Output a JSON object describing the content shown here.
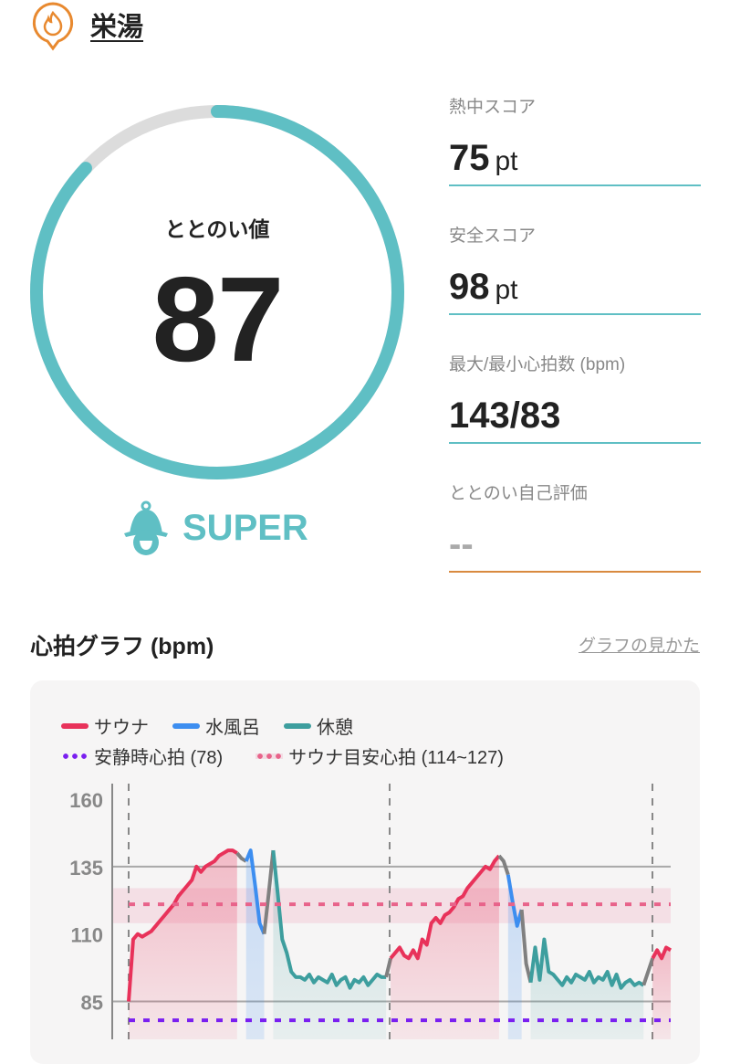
{
  "header": {
    "title": "栄湯",
    "icon": "flame-pin-icon"
  },
  "ring": {
    "label": "ととのい値",
    "value": "87",
    "progress_percent": 87,
    "color": "#5fbfc4",
    "track_color": "#dcdcdc"
  },
  "rank": {
    "label": "SUPER",
    "icon": "sauna-hat-icon"
  },
  "stats": [
    {
      "label": "熱中スコア",
      "value": "75",
      "unit": "pt"
    },
    {
      "label": "安全スコア",
      "value": "98",
      "unit": "pt"
    },
    {
      "label": "最大/最小心拍数 (bpm)",
      "value": "143/83",
      "unit": ""
    },
    {
      "label": "ととのい自己評価",
      "value": "--",
      "unit": ""
    }
  ],
  "graph": {
    "title": "心拍グラフ (bpm)",
    "howto_link": "グラフの見かた"
  },
  "legend": {
    "sauna": "サウナ",
    "cold_bath": "水風呂",
    "rest": "休憩",
    "resting": "安静時心拍 (78)",
    "target": "サウナ目安心拍 (114~127)"
  },
  "colors": {
    "sauna": "#e8325a",
    "cold_bath": "#3d8ef0",
    "rest": "#3d9e9e",
    "transition": "#808080",
    "resting": "#7a1ff0",
    "target": "#e8638a"
  },
  "chart_data": {
    "type": "line",
    "ylabel": "bpm",
    "yticks": [
      160,
      135,
      110,
      85
    ],
    "ylim": [
      70,
      164
    ],
    "resting_hr": 78,
    "target_band": [
      114,
      127
    ],
    "target_line": 121,
    "segments": [
      {
        "phase": "sauna",
        "values": [
          85,
          108,
          110,
          109,
          110,
          111,
          113,
          115,
          117,
          119,
          121,
          124,
          126,
          128,
          130,
          135,
          133,
          135,
          136,
          137,
          139,
          140,
          141,
          141,
          140
        ]
      },
      {
        "phase": "transition",
        "values": [
          138,
          137
        ]
      },
      {
        "phase": "cold_bath",
        "values": [
          141,
          128,
          114,
          110
        ]
      },
      {
        "phase": "transition",
        "values": [
          125,
          141
        ]
      },
      {
        "phase": "rest",
        "values": [
          125,
          108,
          103,
          96,
          94,
          94,
          93,
          95,
          92,
          94,
          93,
          92,
          95,
          91,
          93,
          94,
          90,
          93,
          92,
          94,
          91,
          93,
          95,
          94,
          94
        ]
      },
      {
        "phase": "transition",
        "values": [
          101
        ]
      },
      {
        "phase": "sauna",
        "values": [
          103,
          105,
          102,
          101,
          104,
          101,
          108,
          106,
          114,
          116,
          114,
          117,
          118,
          120,
          123,
          124,
          127,
          129,
          131,
          133,
          135,
          134,
          137,
          139
        ]
      },
      {
        "phase": "transition",
        "values": [
          137,
          132
        ]
      },
      {
        "phase": "cold_bath",
        "values": [
          122,
          113,
          119
        ]
      },
      {
        "phase": "transition",
        "values": [
          99,
          92
        ]
      },
      {
        "phase": "rest",
        "values": [
          105,
          93,
          108,
          96,
          95,
          93,
          91,
          94,
          92,
          95,
          94,
          93,
          96,
          92,
          94,
          93,
          96,
          91,
          95,
          90,
          92,
          93,
          91,
          92,
          91
        ]
      },
      {
        "phase": "transition",
        "values": [
          96,
          101
        ]
      },
      {
        "phase": "sauna",
        "values": [
          104,
          101,
          105,
          104
        ]
      }
    ]
  }
}
